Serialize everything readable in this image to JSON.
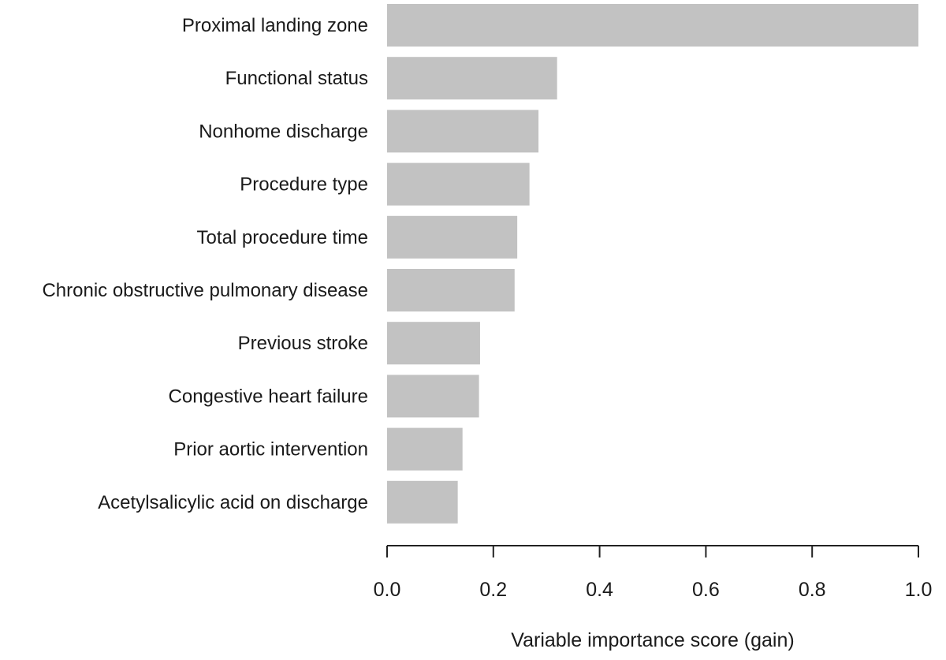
{
  "chart_data": {
    "type": "bar",
    "orientation": "horizontal",
    "categories": [
      "Proximal landing zone",
      "Functional status",
      "Nonhome discharge",
      "Procedure type",
      "Total procedure time",
      "Chronic obstructive pulmonary disease",
      "Previous stroke",
      "Congestive heart failure",
      "Prior aortic intervention",
      "Acetylsalicylic acid on discharge"
    ],
    "values": [
      1.0,
      0.32,
      0.285,
      0.268,
      0.245,
      0.24,
      0.175,
      0.173,
      0.142,
      0.133
    ],
    "xlabel": "Variable importance score (gain)",
    "ylabel": "",
    "xlim": [
      0,
      1.0
    ],
    "x_ticks": [
      0.0,
      0.2,
      0.4,
      0.6,
      0.8,
      1.0
    ],
    "x_tick_labels": [
      "0.0",
      "0.2",
      "0.4",
      "0.6",
      "0.8",
      "1.0"
    ],
    "grid": false,
    "legend": "none",
    "bar_color": "#c2c2c2"
  }
}
